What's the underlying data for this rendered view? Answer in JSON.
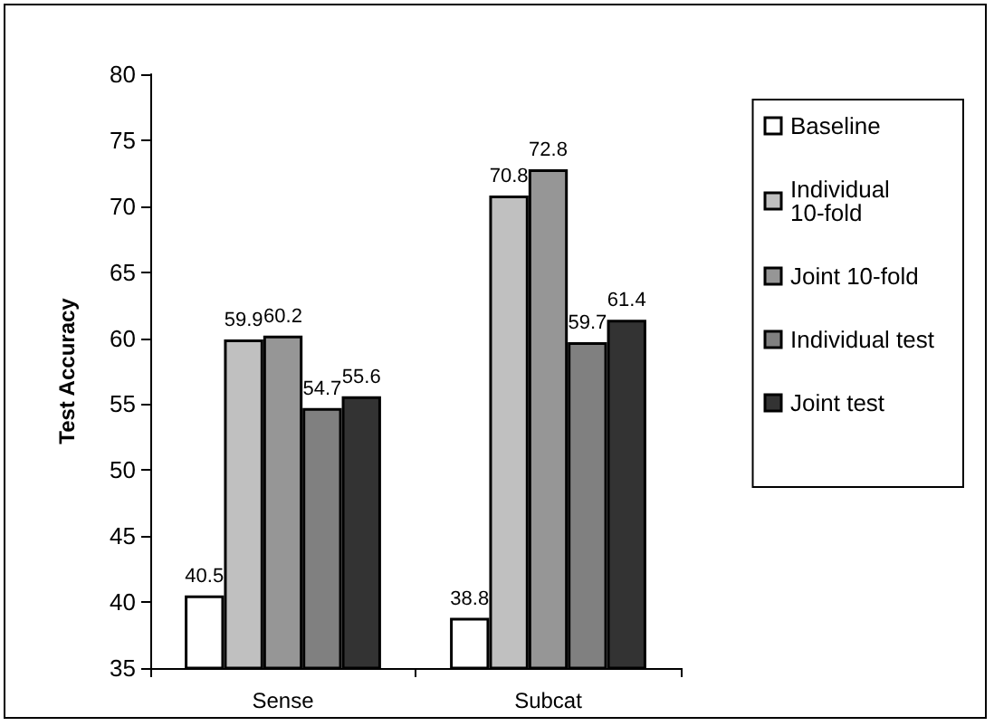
{
  "chart_data": {
    "type": "bar",
    "categories": [
      "Sense",
      "Subcat"
    ],
    "ylabel": "Test Accuracy",
    "ylim": [
      35,
      80
    ],
    "yticks": [
      35,
      40,
      45,
      50,
      55,
      60,
      65,
      70,
      75,
      80
    ],
    "grid": false,
    "legend": "right",
    "data_labels": true,
    "series": [
      {
        "name": "Baseline",
        "color": "#ffffff",
        "values": [
          40.5,
          38.8
        ]
      },
      {
        "name": "Individual 10-fold",
        "color": "#c0c0c0",
        "values": [
          59.9,
          70.8
        ]
      },
      {
        "name": "Joint 10-fold",
        "color": "#969696",
        "values": [
          60.2,
          72.8
        ]
      },
      {
        "name": "Individual test",
        "color": "#808080",
        "values": [
          54.7,
          59.7
        ]
      },
      {
        "name": "Joint test",
        "color": "#333333",
        "values": [
          55.6,
          61.4
        ]
      }
    ]
  }
}
